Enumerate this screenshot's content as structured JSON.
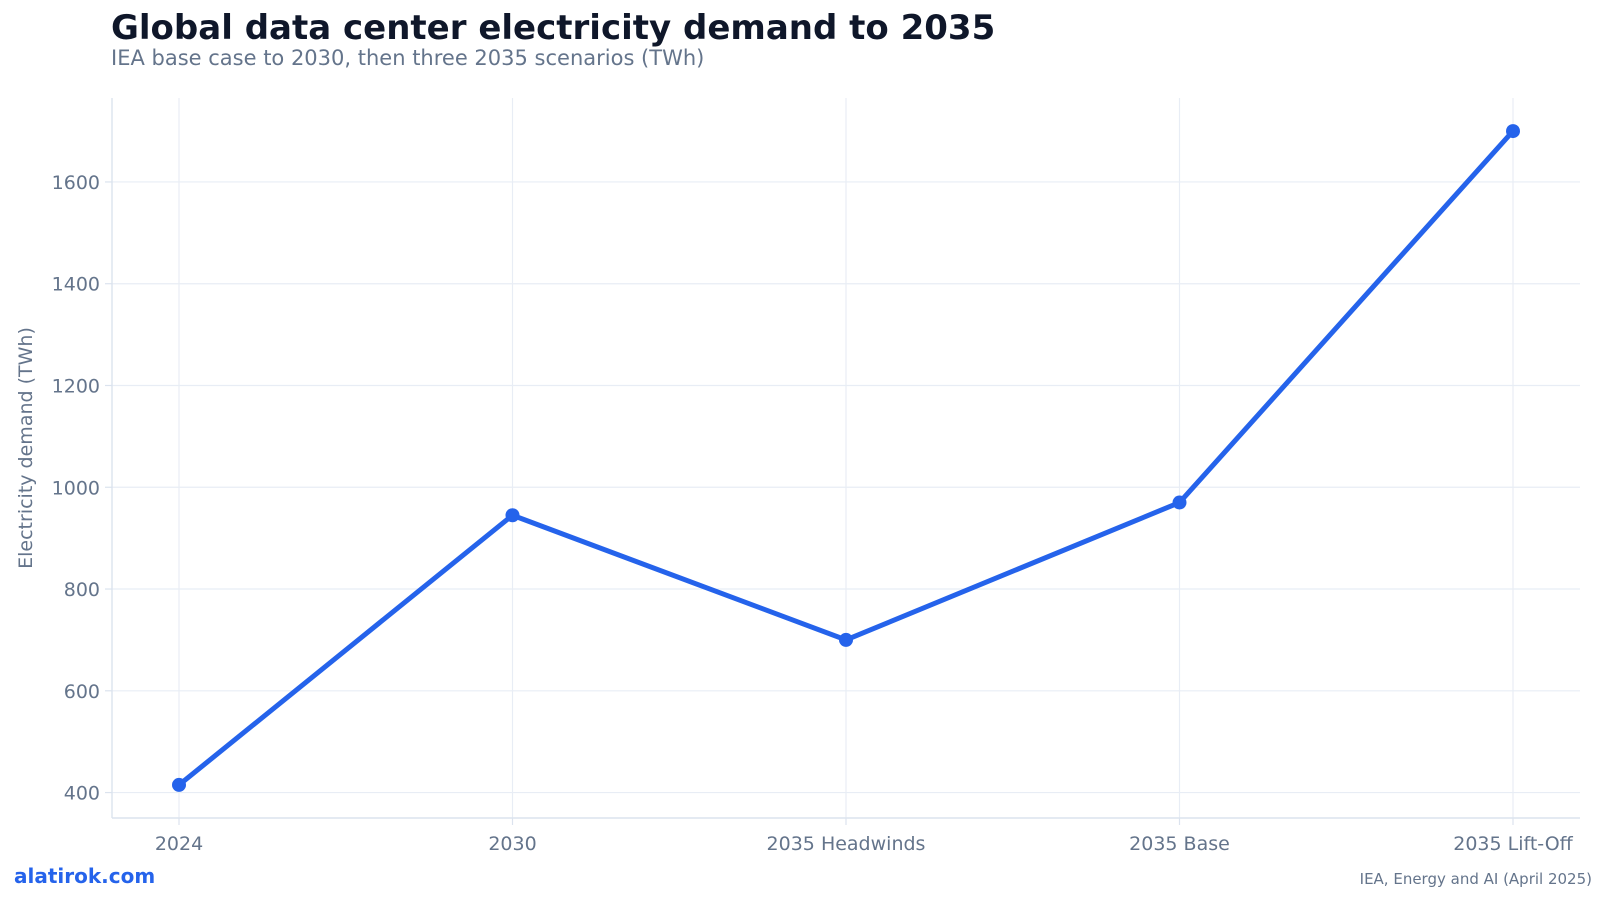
{
  "title": "Global data center electricity demand to 2035",
  "subtitle": "IEA base case to 2030, then three 2035 scenarios (TWh)",
  "footer": {
    "brand": "alatirok.com",
    "source": "IEA, Energy and AI (April 2025)"
  },
  "colors": {
    "line": "#2563eb",
    "grid": "#e8edf5",
    "axis": "#dbe3ee",
    "text_muted": "#64748b",
    "title": "#0f172a"
  },
  "chart_data": {
    "type": "line",
    "title": "Global data center electricity demand to 2035",
    "subtitle": "IEA base case to 2030, then three 2035 scenarios (TWh)",
    "xlabel": "",
    "ylabel": "Electricity demand (TWh)",
    "categories": [
      "2024",
      "2030",
      "2035 Headwinds",
      "2035 Base",
      "2035 Lift-Off"
    ],
    "series": [
      {
        "values": [
          415,
          945,
          700,
          970,
          1700
        ]
      }
    ],
    "y_ticks": [
      400,
      600,
      800,
      1000,
      1200,
      1400,
      1600
    ],
    "ylim": [
      350,
      1765
    ],
    "grid": true,
    "legend": "none",
    "markers": true
  }
}
